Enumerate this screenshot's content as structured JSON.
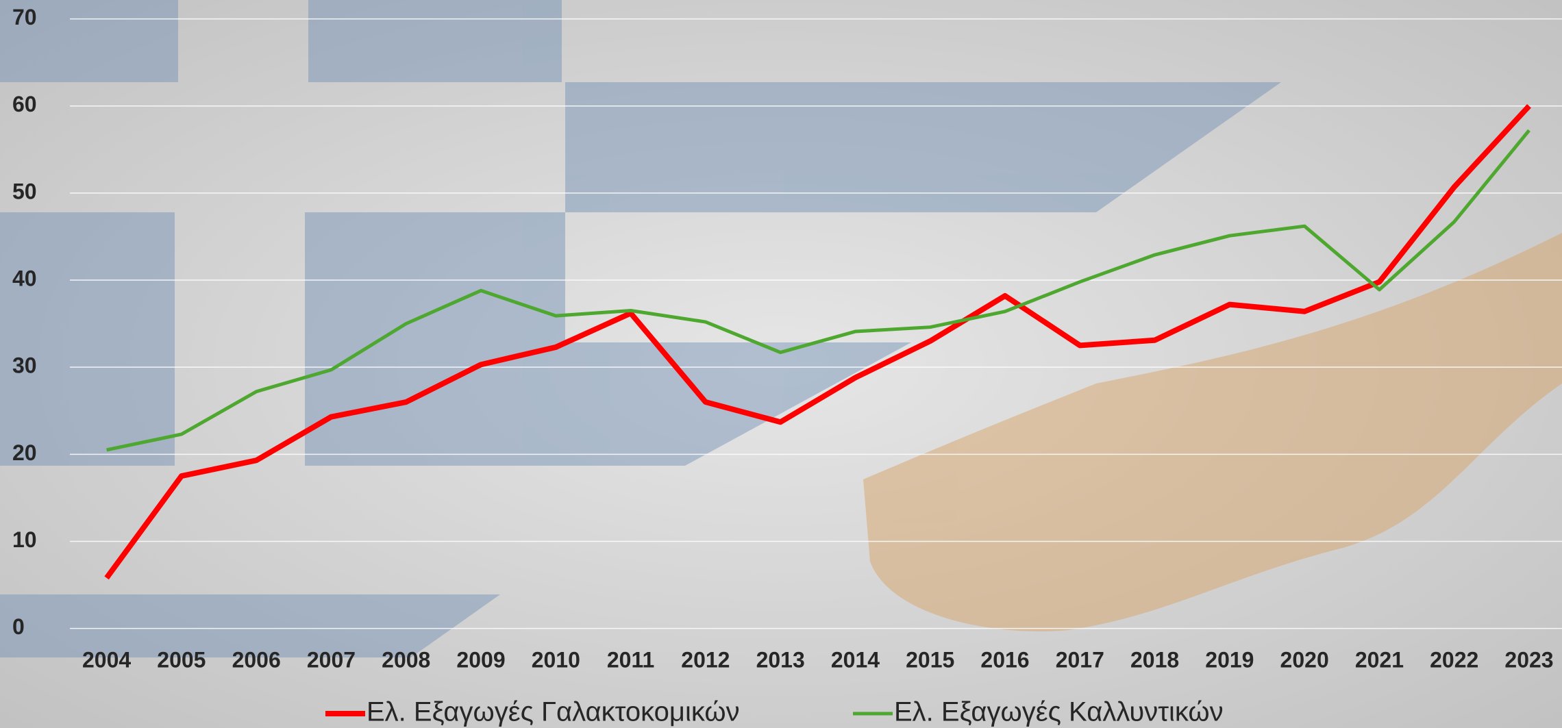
{
  "chart_data": {
    "type": "line",
    "categories": [
      "2004",
      "2005",
      "2006",
      "2007",
      "2008",
      "2009",
      "2010",
      "2011",
      "2012",
      "2013",
      "2014",
      "2015",
      "2016",
      "2017",
      "2018",
      "2019",
      "2020",
      "2021",
      "2022",
      "2023"
    ],
    "series": [
      {
        "name": "Ελ. Εξαγωγές Γαλακτοκομικών",
        "color": "#ff0000",
        "values": [
          5.8,
          17.5,
          19.3,
          24.3,
          26.0,
          30.3,
          32.3,
          36.2,
          26.0,
          23.7,
          28.8,
          33.0,
          38.2,
          32.5,
          33.1,
          37.2,
          36.4,
          39.8,
          50.7,
          60.0
        ]
      },
      {
        "name": "Ελ. Εξαγωγές Καλλυντικών",
        "color": "#4ea72e",
        "values": [
          20.5,
          22.3,
          27.2,
          29.7,
          35.0,
          38.8,
          35.9,
          36.5,
          35.2,
          31.7,
          34.1,
          34.6,
          36.4,
          39.8,
          42.9,
          45.1,
          46.2,
          38.9,
          46.7,
          57.2
        ]
      }
    ],
    "ylim": [
      0,
      70
    ],
    "yticks": [
      0,
      10,
      20,
      30,
      40,
      50,
      60,
      70
    ],
    "grid": true,
    "legend": "bottom"
  }
}
